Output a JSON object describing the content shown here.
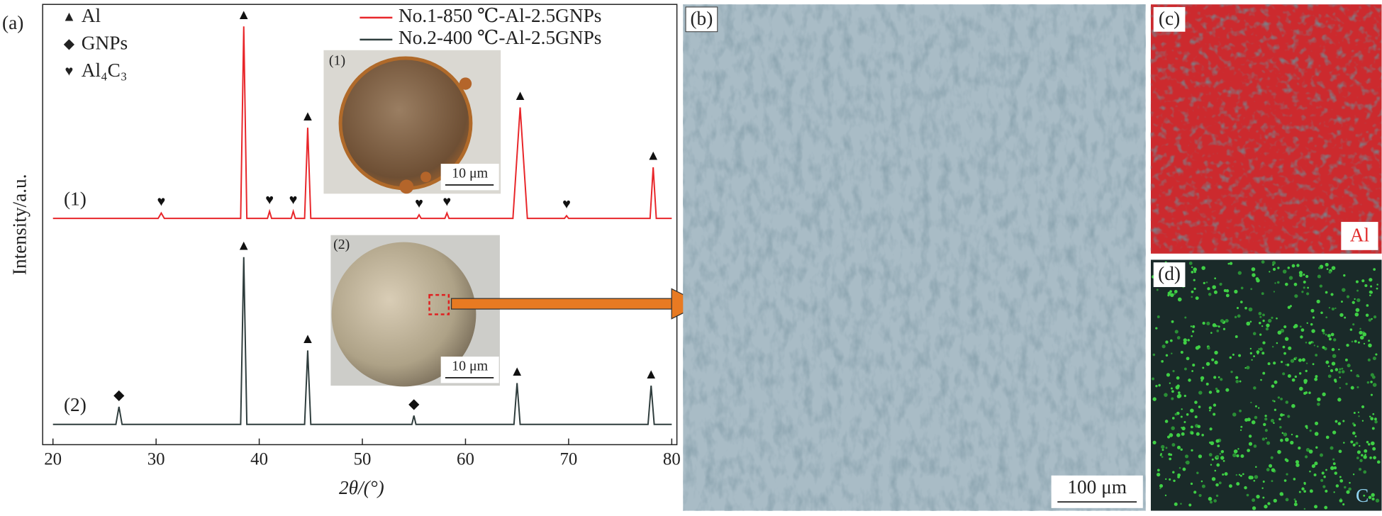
{
  "chart_data": {
    "type": "line",
    "panel_label": "(a)",
    "xlabel": "2θ/(°)",
    "ylabel": "Intensity/a.u.",
    "xlim": [
      19,
      80.5
    ],
    "xticks": [
      20,
      30,
      40,
      50,
      60,
      70,
      80
    ],
    "ylim": [
      0,
      100
    ],
    "yticks": [],
    "legend_position": "top-right",
    "series": [
      {
        "name": "No.1-850 ℃-Al-2.5GNPs",
        "tag": "(1)",
        "color": "#e8262a",
        "x": [
          20,
          30.2,
          30.5,
          30.8,
          38.2,
          38.5,
          38.8,
          40.8,
          41,
          41.2,
          43.1,
          43.3,
          43.5,
          44.4,
          44.7,
          45,
          55.3,
          55.5,
          55.7,
          58,
          58.2,
          58.4,
          64.6,
          65.3,
          66,
          69.6,
          69.8,
          70,
          77.9,
          78.2,
          78.5,
          80
        ],
        "values": [
          51.4,
          51.4,
          52.6,
          51.4,
          51.4,
          95,
          51.4,
          51.4,
          53,
          51.4,
          51.4,
          53,
          51.4,
          51.4,
          72,
          51.4,
          51.4,
          52.2,
          51.4,
          51.4,
          52.6,
          51.4,
          51.4,
          76.6,
          51.4,
          51.4,
          52,
          51.4,
          51.4,
          63,
          51.4,
          51.4
        ]
      },
      {
        "name": "No.2-400 ℃-Al-2.5GNPs",
        "tag": "(2)",
        "color": "#2f3d3d",
        "x": [
          20,
          26.1,
          26.4,
          26.7,
          38.2,
          38.5,
          38.8,
          44.4,
          44.7,
          45,
          54.8,
          55,
          55.2,
          64.7,
          65,
          65.3,
          77.7,
          78,
          78.3,
          80
        ],
        "values": [
          4.6,
          4.6,
          8.6,
          4.6,
          4.6,
          42.6,
          4.6,
          4.6,
          21.4,
          4.6,
          4.6,
          6.6,
          4.6,
          4.6,
          14,
          4.6,
          4.6,
          13.4,
          4.6,
          4.6
        ]
      }
    ],
    "phase_legend": [
      {
        "symbol": "▲",
        "label": "Al"
      },
      {
        "symbol": "◆",
        "label": "GNPs"
      },
      {
        "symbol": "♥",
        "label": "Al₄C₃"
      }
    ],
    "markers": [
      {
        "symbol": "♥",
        "x": 30.5,
        "y": 52.6
      },
      {
        "symbol": "▲",
        "x": 38.5,
        "y": 95
      },
      {
        "symbol": "♥",
        "x": 41,
        "y": 53
      },
      {
        "symbol": "♥",
        "x": 43.3,
        "y": 53
      },
      {
        "symbol": "▲",
        "x": 44.7,
        "y": 72
      },
      {
        "symbol": "♥",
        "x": 55.5,
        "y": 52.2
      },
      {
        "symbol": "♥",
        "x": 58.2,
        "y": 52.6
      },
      {
        "symbol": "▲",
        "x": 65.3,
        "y": 76.6
      },
      {
        "symbol": "♥",
        "x": 69.8,
        "y": 52
      },
      {
        "symbol": "▲",
        "x": 78.2,
        "y": 63
      },
      {
        "symbol": "◆",
        "x": 26.4,
        "y": 8.6
      },
      {
        "symbol": "▲",
        "x": 38.5,
        "y": 42.6
      },
      {
        "symbol": "▲",
        "x": 44.7,
        "y": 21.4
      },
      {
        "symbol": "◆",
        "x": 55,
        "y": 6.6
      },
      {
        "symbol": "▲",
        "x": 65,
        "y": 14
      },
      {
        "symbol": "▲",
        "x": 78,
        "y": 13.4
      }
    ]
  },
  "figure": {
    "insets": [
      {
        "label": "(1)",
        "scale_bar": "10 μm"
      },
      {
        "label": "(2)",
        "scale_bar": "10 μm"
      }
    ],
    "panel_b": {
      "label": "(b)",
      "scale_bar": "100 μm"
    },
    "panel_c": {
      "label": "(c)",
      "element": "Al"
    },
    "panel_d": {
      "label": "(d)",
      "element": "C"
    }
  }
}
